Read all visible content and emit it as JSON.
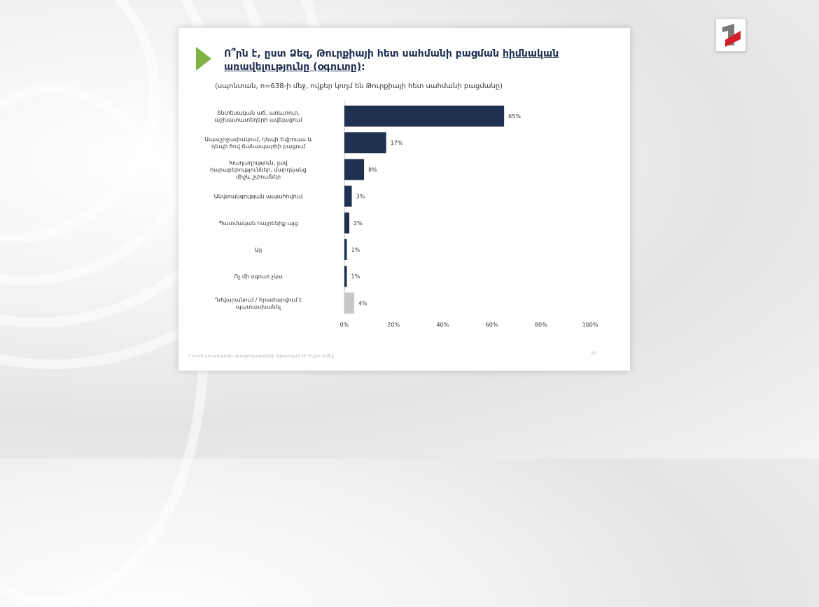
{
  "slide": {
    "title_part1": "Ո՞րն է, ըստ Ձեզ, Թուրքիայի հետ սահմանի բացման ",
    "title_underlined": "հիմնական առավելությունը (օգուտը)",
    "title_end": ":",
    "subtitle": "(սպոնտան, n=638-ի մեջ, ովքեր կողմ են Թուրքիայի հետ սահմանի բացմանը)",
    "footnote": "* n=16 առարկաներ ասացողականներ՝ նկատված 55 +Այո» ի մեջ",
    "page_number": "16"
  },
  "colors": {
    "bar": "#1f3150",
    "bar_muted": "#c8c8c8",
    "accent": "#7cb342",
    "logo_red": "#d32027"
  },
  "chart_data": {
    "type": "bar",
    "orientation": "horizontal",
    "categories": [
      [
        "Տնտեսական աճ, առևտուր,",
        "աշխատատեղերի ավելացում"
      ],
      [
        "Ապաշրջափակում, դեպի Եվրոպա և",
        "դեպի ծով ճանապարհի բացում"
      ],
      [
        "Խաղաղություն, լավ",
        "հարաբերություններ, մարդկանց",
        "միջև շփումներ"
      ],
      [
        "Անվտանգության ապահովում"
      ],
      [
        "Պատմական հայրենիք այց"
      ],
      [
        "Այլ"
      ],
      [
        "Ոչ մի օգուտ չկա"
      ],
      [
        "Դժվարանում / հրաժարվում է",
        "պատասխանել"
      ]
    ],
    "values": [
      65,
      17,
      8,
      3,
      2,
      1,
      1,
      4
    ],
    "value_labels": [
      "65%",
      "17%",
      "8%",
      "3%",
      "2%",
      "1%",
      "1%",
      "4%"
    ],
    "muted_index": 7,
    "xlim": [
      0,
      100
    ],
    "xticks": [
      "0%",
      "20%",
      "40%",
      "60%",
      "80%",
      "100%"
    ],
    "grid": false,
    "legend": "none"
  }
}
